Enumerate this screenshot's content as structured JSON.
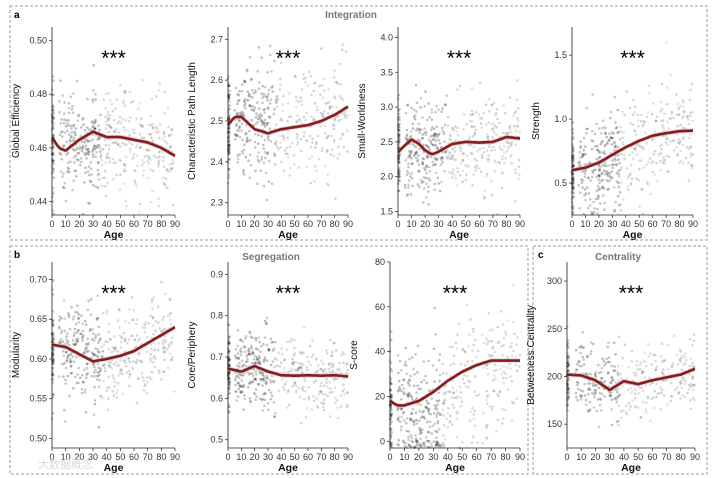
{
  "groups": {
    "integration": {
      "label": "Integration",
      "letter": "a"
    },
    "segregation": {
      "label": "Segregation",
      "letter": "b"
    },
    "centrality": {
      "label": "Centrality",
      "letter": "c"
    }
  },
  "watermark": "大数据概念",
  "colors": {
    "curve": "#8b1a1a",
    "points": "#1a1a1a",
    "band": "#c8c8c8",
    "frame": "#9a9a9a"
  },
  "chart_data": [
    {
      "type": "scatter",
      "key": "global_efficiency",
      "title": "",
      "xlabel": "Age",
      "ylabel": "Global Efficiency",
      "significance": "***",
      "xlim": [
        0,
        90
      ],
      "ylim": [
        0.435,
        0.505
      ],
      "xticks": [
        "0",
        "10",
        "20",
        "30",
        "40",
        "50",
        "60",
        "70",
        "80",
        "90"
      ],
      "yticks": [
        "0.44",
        "0.46",
        "0.48",
        "0.50"
      ],
      "ytick_values": [
        0.44,
        0.46,
        0.48,
        0.5
      ],
      "scatter": {
        "center": [
          0.462,
          0.462,
          0.461,
          0.463,
          0.463,
          0.462,
          0.461,
          0.46,
          0.459,
          0.457
        ],
        "spread": [
          0.012,
          0.009,
          0.009,
          0.01,
          0.009,
          0.009,
          0.009,
          0.009,
          0.009,
          0.009
        ],
        "n": 520
      },
      "fit": {
        "x": [
          0,
          5,
          10,
          20,
          30,
          40,
          50,
          60,
          70,
          80,
          90
        ],
        "y": [
          0.464,
          0.46,
          0.459,
          0.463,
          0.466,
          0.464,
          0.464,
          0.463,
          0.462,
          0.46,
          0.457
        ]
      }
    },
    {
      "type": "scatter",
      "key": "char_path_length",
      "title": "",
      "xlabel": "Age",
      "ylabel": "Characteristic Path Length",
      "significance": "***",
      "xlim": [
        0,
        90
      ],
      "ylim": [
        2.27,
        2.73
      ],
      "xticks": [
        "0",
        "10",
        "20",
        "30",
        "40",
        "50",
        "60",
        "70",
        "80",
        "90"
      ],
      "yticks": [
        "2.3",
        "2.4",
        "2.5",
        "2.6",
        "2.7"
      ],
      "ytick_values": [
        2.3,
        2.4,
        2.5,
        2.6,
        2.7
      ],
      "scatter": {
        "center": [
          2.49,
          2.5,
          2.49,
          2.48,
          2.48,
          2.49,
          2.5,
          2.51,
          2.52,
          2.54
        ],
        "spread": [
          0.06,
          0.07,
          0.07,
          0.07,
          0.07,
          0.07,
          0.07,
          0.07,
          0.07,
          0.07
        ],
        "n": 520
      },
      "fit": {
        "x": [
          0,
          5,
          10,
          20,
          30,
          40,
          50,
          60,
          70,
          80,
          90
        ],
        "y": [
          2.49,
          2.51,
          2.51,
          2.48,
          2.47,
          2.48,
          2.485,
          2.49,
          2.5,
          2.515,
          2.535
        ]
      }
    },
    {
      "type": "scatter",
      "key": "small_worldness",
      "title": "",
      "xlabel": "Age",
      "ylabel": "Small-Worldness",
      "significance": "***",
      "xlim": [
        0,
        90
      ],
      "ylim": [
        1.45,
        4.15
      ],
      "xticks": [
        "0",
        "10",
        "20",
        "30",
        "40",
        "50",
        "60",
        "70",
        "80",
        "90"
      ],
      "yticks": [
        "1.5",
        "2.0",
        "2.5",
        "3.0",
        "3.5",
        "4.0"
      ],
      "ytick_values": [
        1.5,
        2.0,
        2.5,
        3.0,
        3.5,
        4.0
      ],
      "scatter": {
        "center": [
          2.4,
          2.48,
          2.4,
          2.38,
          2.4,
          2.45,
          2.48,
          2.5,
          2.52,
          2.55
        ],
        "spread": [
          0.35,
          0.35,
          0.33,
          0.33,
          0.33,
          0.33,
          0.33,
          0.33,
          0.33,
          0.33
        ],
        "n": 520
      },
      "fit": {
        "x": [
          0,
          5,
          10,
          15,
          20,
          25,
          30,
          40,
          50,
          60,
          70,
          80,
          90
        ],
        "y": [
          2.35,
          2.45,
          2.53,
          2.48,
          2.38,
          2.32,
          2.36,
          2.47,
          2.5,
          2.49,
          2.5,
          2.57,
          2.55
        ]
      }
    },
    {
      "type": "scatter",
      "key": "strength",
      "title": "",
      "xlabel": "Age",
      "ylabel": "Strength",
      "significance": "***",
      "xlim": [
        0,
        90
      ],
      "ylim": [
        0.25,
        1.72
      ],
      "xticks": [
        "0",
        "10",
        "20",
        "30",
        "40",
        "50",
        "60",
        "70",
        "80",
        "90"
      ],
      "yticks": [
        "0.5",
        "1.0",
        "1.5"
      ],
      "ytick_values": [
        0.5,
        1.0,
        1.5
      ],
      "scatter": {
        "center": [
          0.58,
          0.62,
          0.65,
          0.7,
          0.76,
          0.82,
          0.86,
          0.88,
          0.9,
          0.92
        ],
        "spread": [
          0.16,
          0.18,
          0.18,
          0.19,
          0.19,
          0.19,
          0.19,
          0.19,
          0.19,
          0.19
        ],
        "n": 520
      },
      "fit": {
        "x": [
          0,
          10,
          20,
          30,
          40,
          50,
          60,
          70,
          80,
          90
        ],
        "y": [
          0.6,
          0.62,
          0.66,
          0.72,
          0.78,
          0.83,
          0.87,
          0.89,
          0.905,
          0.91
        ]
      }
    },
    {
      "type": "scatter",
      "key": "modularity",
      "title": "",
      "xlabel": "Age",
      "ylabel": "Modularity",
      "significance": "***",
      "xlim": [
        0,
        90
      ],
      "ylim": [
        0.488,
        0.722
      ],
      "xticks": [
        "0",
        "10",
        "20",
        "30",
        "40",
        "50",
        "60",
        "70",
        "80",
        "90"
      ],
      "yticks": [
        "0.50",
        "0.55",
        "0.60",
        "0.65",
        "0.70"
      ],
      "ytick_values": [
        0.5,
        0.55,
        0.6,
        0.65,
        0.7
      ],
      "scatter": {
        "center": [
          0.615,
          0.612,
          0.605,
          0.598,
          0.6,
          0.603,
          0.61,
          0.618,
          0.628,
          0.638
        ],
        "spread": [
          0.03,
          0.03,
          0.03,
          0.03,
          0.03,
          0.03,
          0.03,
          0.03,
          0.03,
          0.03
        ],
        "n": 520
      },
      "fit": {
        "x": [
          0,
          10,
          20,
          30,
          40,
          50,
          60,
          70,
          80,
          90
        ],
        "y": [
          0.618,
          0.615,
          0.606,
          0.597,
          0.6,
          0.604,
          0.61,
          0.62,
          0.63,
          0.64
        ]
      }
    },
    {
      "type": "scatter",
      "key": "core_periphery",
      "title": "",
      "xlabel": "Age",
      "ylabel": "Core/Periphery",
      "significance": "***",
      "xlim": [
        0,
        90
      ],
      "ylim": [
        0.48,
        0.93
      ],
      "xticks": [
        "0",
        "10",
        "20",
        "30",
        "40",
        "50",
        "60",
        "70",
        "80",
        "90"
      ],
      "yticks": [
        "0.5",
        "0.6",
        "0.7",
        "0.8",
        "0.9"
      ],
      "ytick_values": [
        0.5,
        0.6,
        0.7,
        0.8,
        0.9
      ],
      "scatter": {
        "center": [
          0.665,
          0.67,
          0.67,
          0.668,
          0.66,
          0.655,
          0.655,
          0.655,
          0.655,
          0.653
        ],
        "spread": [
          0.045,
          0.045,
          0.045,
          0.045,
          0.045,
          0.045,
          0.045,
          0.045,
          0.045,
          0.045
        ],
        "n": 520
      },
      "fit": {
        "x": [
          0,
          10,
          20,
          30,
          40,
          50,
          60,
          70,
          80,
          90
        ],
        "y": [
          0.672,
          0.665,
          0.678,
          0.665,
          0.656,
          0.655,
          0.656,
          0.655,
          0.656,
          0.653
        ]
      }
    },
    {
      "type": "scatter",
      "key": "s_core",
      "title": "",
      "xlabel": "Age",
      "ylabel": "S-core",
      "significance": "***",
      "xlim": [
        0,
        90
      ],
      "ylim": [
        -3,
        80
      ],
      "xticks": [
        "0",
        "10",
        "20",
        "30",
        "40",
        "50",
        "60",
        "70",
        "80",
        "90"
      ],
      "yticks": [
        "0",
        "20",
        "40",
        "60",
        "80"
      ],
      "ytick_values": [
        0,
        20,
        40,
        60,
        80
      ],
      "scatter": {
        "center": [
          15,
          12,
          10,
          14,
          20,
          26,
          31,
          35,
          36,
          36
        ],
        "spread": [
          12,
          14,
          14,
          16,
          16,
          16,
          16,
          16,
          16,
          16
        ],
        "n": 520
      },
      "fit": {
        "x": [
          0,
          5,
          10,
          20,
          30,
          40,
          50,
          60,
          70,
          80,
          90
        ],
        "y": [
          18,
          16,
          16,
          18,
          22,
          27,
          31,
          34,
          36,
          36,
          36
        ]
      }
    },
    {
      "type": "scatter",
      "key": "betweenness",
      "title": "",
      "xlabel": "Age",
      "ylabel": "Betweeness Centrality",
      "significance": "***",
      "xlim": [
        0,
        90
      ],
      "ylim": [
        125,
        320
      ],
      "xticks": [
        "0",
        "10",
        "20",
        "30",
        "40",
        "50",
        "60",
        "70",
        "80",
        "90"
      ],
      "yticks": [
        "150",
        "200",
        "250",
        "300"
      ],
      "ytick_values": [
        150,
        200,
        250,
        300
      ],
      "scatter": {
        "center": [
          200,
          200,
          195,
          188,
          190,
          192,
          195,
          198,
          202,
          208
        ],
        "spread": [
          18,
          18,
          18,
          18,
          18,
          18,
          18,
          18,
          18,
          18
        ],
        "n": 420
      },
      "fit": {
        "x": [
          0,
          10,
          20,
          30,
          40,
          50,
          60,
          70,
          80,
          90
        ],
        "y": [
          202,
          201,
          196,
          186,
          195,
          192,
          196,
          199,
          202,
          208
        ]
      }
    }
  ]
}
